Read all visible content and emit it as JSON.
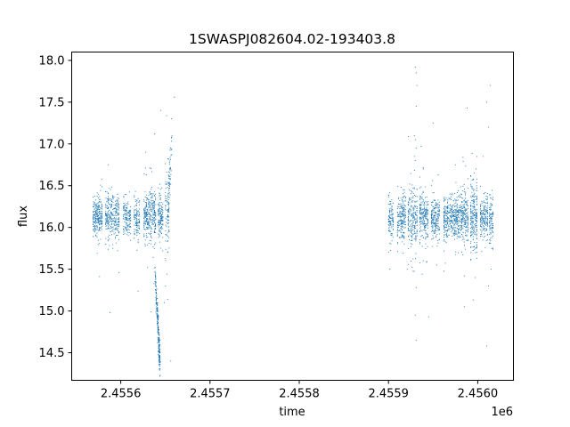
{
  "chart_data": {
    "type": "scatter",
    "title": "1SWASPJ082604.02-193403.8",
    "xlabel": "time",
    "ylabel": "flux",
    "x_offset_label": "1e6",
    "xlim": [
      2455545,
      2456040
    ],
    "ylim": [
      14.17,
      18.1
    ],
    "x_ticks": [
      2455600,
      2455700,
      2455800,
      2455900,
      2456000
    ],
    "x_tick_labels": [
      "2.4556",
      "2.4557",
      "2.4558",
      "2.4559",
      "2.4560"
    ],
    "y_ticks": [
      14.5,
      15.0,
      15.5,
      16.0,
      16.5,
      17.0,
      17.5,
      18.0
    ],
    "y_tick_labels": [
      "14.5",
      "15.0",
      "15.5",
      "16.0",
      "16.5",
      "17.0",
      "17.5",
      "18.0"
    ],
    "grid": false,
    "marker_color": "#1f77b4",
    "clusters": [
      {
        "x": [
          2455569,
          2455580
        ],
        "center": 16.13,
        "spread": 0.12,
        "count": 260
      },
      {
        "x": [
          2455583,
          2455599
        ],
        "center": 16.13,
        "spread": 0.13,
        "count": 300
      },
      {
        "x": [
          2455603,
          2455612
        ],
        "center": 16.12,
        "spread": 0.1,
        "count": 140
      },
      {
        "x": [
          2455615,
          2455622
        ],
        "center": 16.13,
        "spread": 0.12,
        "count": 120
      },
      {
        "x": [
          2455626,
          2455640
        ],
        "center": 16.14,
        "spread": 0.14,
        "count": 330
      },
      {
        "x": [
          2455642,
          2455648
        ],
        "center": 16.12,
        "spread": 0.12,
        "count": 140
      },
      {
        "x": [
          2455650,
          2455655
        ],
        "center": 16.2,
        "spread": 0.25,
        "count": 90
      },
      {
        "x": [
          2455900,
          2455906
        ],
        "center": 16.1,
        "spread": 0.12,
        "count": 110
      },
      {
        "x": [
          2455910,
          2455920
        ],
        "center": 16.1,
        "spread": 0.14,
        "count": 200
      },
      {
        "x": [
          2455922,
          2455933
        ],
        "center": 16.1,
        "spread": 0.18,
        "count": 220
      },
      {
        "x": [
          2455935,
          2455945
        ],
        "center": 16.12,
        "spread": 0.14,
        "count": 220
      },
      {
        "x": [
          2455948,
          2455958
        ],
        "center": 16.12,
        "spread": 0.12,
        "count": 200
      },
      {
        "x": [
          2455962,
          2455970
        ],
        "center": 16.1,
        "spread": 0.13,
        "count": 170
      },
      {
        "x": [
          2455970,
          2455990
        ],
        "center": 16.13,
        "spread": 0.13,
        "count": 450
      },
      {
        "x": [
          2455992,
          2456000
        ],
        "center": 16.12,
        "spread": 0.2,
        "count": 230
      },
      {
        "x": [
          2456003,
          2456012
        ],
        "center": 16.12,
        "spread": 0.12,
        "count": 180
      },
      {
        "x": [
          2456013,
          2456018
        ],
        "center": 16.1,
        "spread": 0.12,
        "count": 100
      }
    ],
    "dip": {
      "x": [
        2455638,
        2455644
      ],
      "y_top": 15.55,
      "y_bottom": 14.35,
      "count": 280
    },
    "rise": {
      "x": [
        2455653,
        2455657
      ],
      "y_low": 16.2,
      "y_high": 17.05,
      "count": 60
    },
    "outliers": [
      {
        "x": 2455588,
        "y": 14.98
      },
      {
        "x": 2455598,
        "y": 15.46
      },
      {
        "x": 2455634,
        "y": 14.99
      },
      {
        "x": 2455628,
        "y": 16.9
      },
      {
        "x": 2455630,
        "y": 15.52
      },
      {
        "x": 2455638,
        "y": 17.12
      },
      {
        "x": 2455645,
        "y": 17.4
      },
      {
        "x": 2455660,
        "y": 17.56
      },
      {
        "x": 2455657,
        "y": 17.3
      },
      {
        "x": 2455656,
        "y": 14.4
      },
      {
        "x": 2455649,
        "y": 15.1
      },
      {
        "x": 2455586,
        "y": 16.75
      },
      {
        "x": 2455930,
        "y": 17.92
      },
      {
        "x": 2455931,
        "y": 17.85
      },
      {
        "x": 2455932,
        "y": 17.7
      },
      {
        "x": 2455931,
        "y": 17.45
      },
      {
        "x": 2455929,
        "y": 17.1
      },
      {
        "x": 2455930,
        "y": 17.05
      },
      {
        "x": 2455931,
        "y": 16.95
      },
      {
        "x": 2455929,
        "y": 16.85
      },
      {
        "x": 2455930,
        "y": 16.8
      },
      {
        "x": 2455931,
        "y": 15.28
      },
      {
        "x": 2455930,
        "y": 14.95
      },
      {
        "x": 2455931,
        "y": 14.65
      },
      {
        "x": 2455945,
        "y": 14.93
      },
      {
        "x": 2455950,
        "y": 17.25
      },
      {
        "x": 2455954,
        "y": 15.55
      },
      {
        "x": 2455939,
        "y": 16.7
      },
      {
        "x": 2455985,
        "y": 15.05
      },
      {
        "x": 2455988,
        "y": 17.43
      },
      {
        "x": 2455998,
        "y": 16.7
      },
      {
        "x": 2455999,
        "y": 16.85
      },
      {
        "x": 2455997,
        "y": 15.4
      },
      {
        "x": 2456010,
        "y": 17.5
      },
      {
        "x": 2456012,
        "y": 17.2
      },
      {
        "x": 2456014,
        "y": 17.7
      },
      {
        "x": 2456012,
        "y": 15.3
      },
      {
        "x": 2456015,
        "y": 15.5
      },
      {
        "x": 2456010,
        "y": 14.58
      },
      {
        "x": 2456006,
        "y": 16.85
      },
      {
        "x": 2455975,
        "y": 16.75
      },
      {
        "x": 2455921,
        "y": 15.5
      }
    ]
  }
}
